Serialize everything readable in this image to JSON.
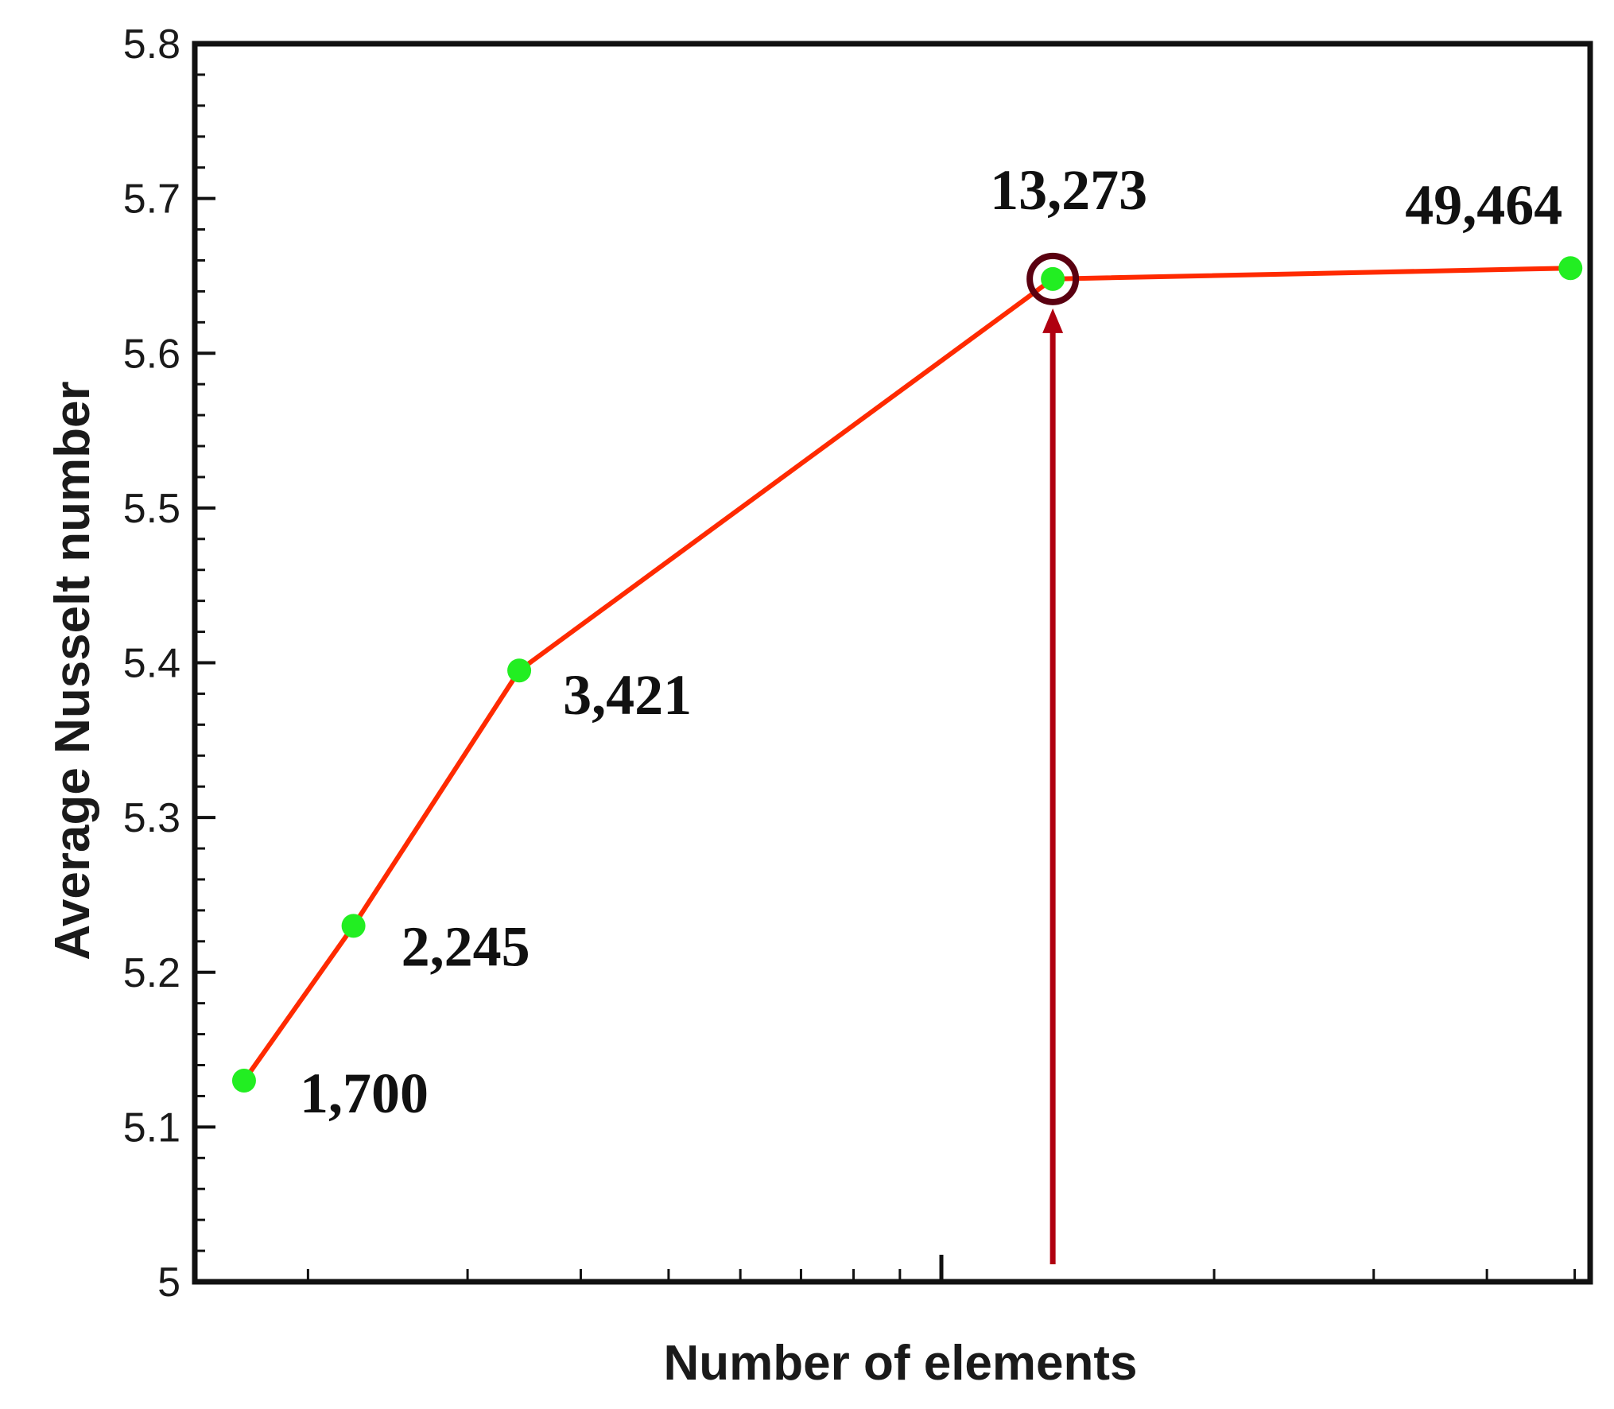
{
  "chart_data": {
    "type": "line",
    "xlabel": "Number of elements",
    "ylabel": "Average Nusselt number",
    "xscale": "log",
    "xlim": [
      1500,
      52000
    ],
    "ylim": [
      5.0,
      5.8
    ],
    "yticks": [
      "5",
      "5.1",
      "5.2",
      "5.3",
      "5.4",
      "5.5",
      "5.6",
      "5.7",
      "5.8"
    ],
    "grid": false,
    "series": [
      {
        "x": [
          1700,
          2245,
          3421,
          13273,
          49464
        ],
        "y": [
          5.13,
          5.23,
          5.395,
          5.648,
          5.655
        ]
      }
    ],
    "point_labels": [
      "1,700",
      "2,245",
      "3,421",
      "13,273",
      "49,464"
    ],
    "highlight": {
      "x": 13273,
      "y": 5.648,
      "marker": "circle",
      "arrow": "up"
    },
    "colors": {
      "line": "#ff2a00",
      "marker": "#22ee22",
      "highlight": "#5a0010",
      "arrow": "#b00010",
      "axis": "#111111"
    }
  }
}
